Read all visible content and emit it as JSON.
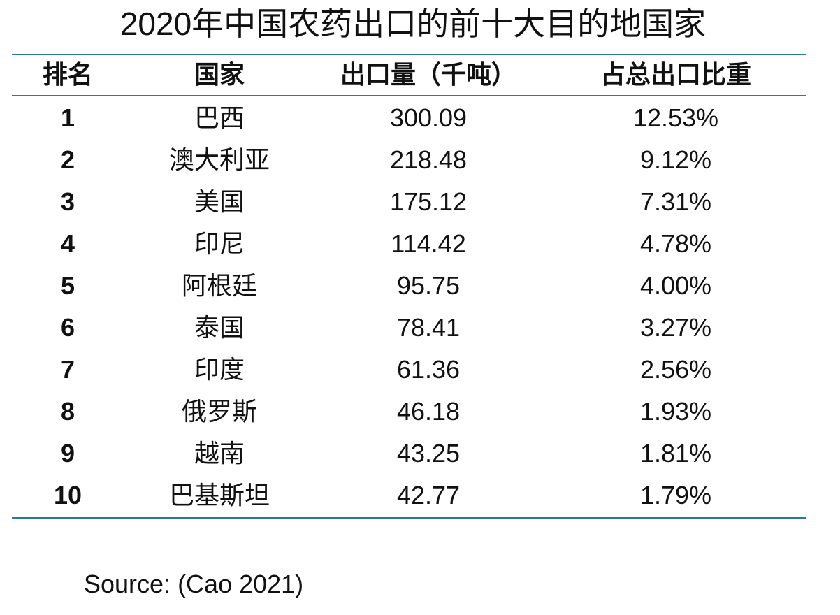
{
  "title": "2020年中国农药出口的前十大目的地国家",
  "table": {
    "headers": [
      "排名",
      "国家",
      "出口量（千吨）",
      "占总出口比重"
    ],
    "rows": [
      {
        "rank": "1",
        "country": "巴西",
        "volume": "300.09",
        "share": "12.53%"
      },
      {
        "rank": "2",
        "country": "澳大利亚",
        "volume": "218.48",
        "share": "9.12%"
      },
      {
        "rank": "3",
        "country": "美国",
        "volume": "175.12",
        "share": "7.31%"
      },
      {
        "rank": "4",
        "country": "印尼",
        "volume": "114.42",
        "share": "4.78%"
      },
      {
        "rank": "5",
        "country": "阿根廷",
        "volume": "95.75",
        "share": "4.00%"
      },
      {
        "rank": "6",
        "country": "泰国",
        "volume": "78.41",
        "share": "3.27%"
      },
      {
        "rank": "7",
        "country": "印度",
        "volume": "61.36",
        "share": "2.56%"
      },
      {
        "rank": "8",
        "country": "俄罗斯",
        "volume": "46.18",
        "share": "1.93%"
      },
      {
        "rank": "9",
        "country": "越南",
        "volume": "43.25",
        "share": "1.81%"
      },
      {
        "rank": "10",
        "country": "巴基斯坦",
        "volume": "42.77",
        "share": "1.79%"
      }
    ]
  },
  "source": "Source: (Cao 2021)",
  "colors": {
    "rule": "#2b7a99",
    "text": "#111111"
  }
}
